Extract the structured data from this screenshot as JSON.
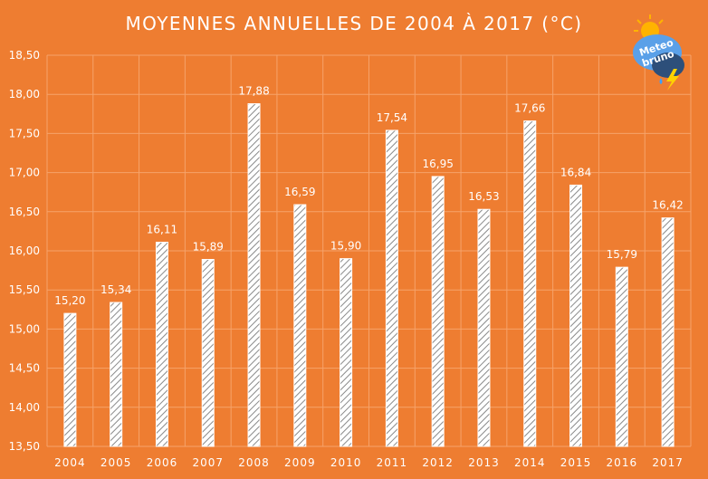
{
  "chart_data": {
    "type": "bar",
    "title": "MOYENNES ANNUELLES DE 2004 À 2017 (°C)",
    "xlabel": "",
    "ylabel": "",
    "categories": [
      "2004",
      "2005",
      "2006",
      "2007",
      "2008",
      "2009",
      "2010",
      "2011",
      "2012",
      "2013",
      "2014",
      "2015",
      "2016",
      "2017"
    ],
    "values": [
      15.2,
      15.34,
      16.11,
      15.89,
      17.88,
      16.59,
      15.9,
      17.54,
      16.95,
      16.53,
      17.66,
      16.84,
      15.79,
      16.42
    ],
    "value_labels": [
      "15,20",
      "15,34",
      "16,11",
      "15,89",
      "17,88",
      "16,59",
      "15,90",
      "17,54",
      "16,95",
      "16,53",
      "17,66",
      "16,84",
      "15,79",
      "16,42"
    ],
    "ylim": [
      13.5,
      18.5
    ],
    "yticks": [
      13.5,
      14.0,
      14.5,
      15.0,
      15.5,
      16.0,
      16.5,
      17.0,
      17.5,
      18.0,
      18.5
    ],
    "ytick_labels": [
      "13,50",
      "14,00",
      "14,50",
      "15,00",
      "15,50",
      "16,00",
      "16,50",
      "17,00",
      "17,50",
      "18,00",
      "18,50"
    ],
    "grid": true,
    "legend": "none",
    "colors": {
      "background": "#ee7d31",
      "bar_fill": "#ffffff",
      "bar_hatch": "#8a8a8a",
      "text": "#ffffff"
    }
  },
  "logo": {
    "line1": "Meteo",
    "line2": "bruno"
  }
}
